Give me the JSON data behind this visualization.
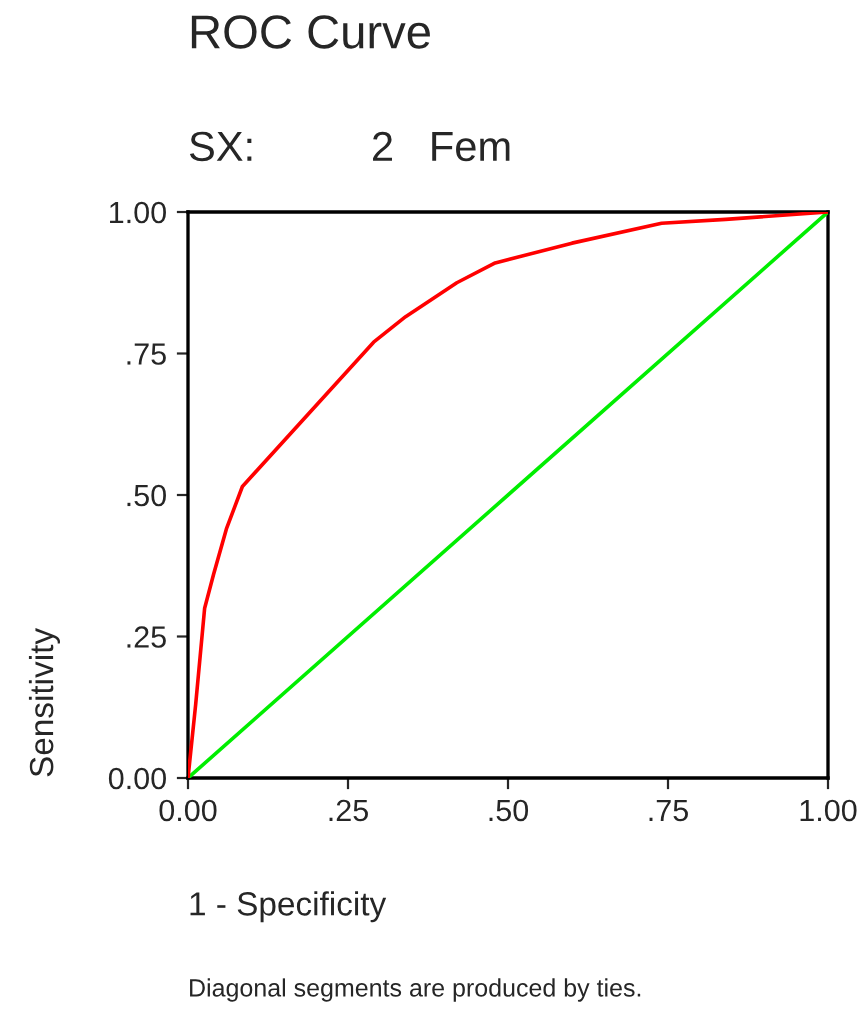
{
  "chart_data": {
    "type": "line",
    "title": "ROC Curve",
    "subtitle": "SX:          2   Fem",
    "xlabel": "1 - Specificity",
    "ylabel": "Sensitivity",
    "annotations": [
      "Diagonal segments are produced by ties."
    ],
    "series": [
      {
        "color": "#ff0000",
        "x": [
          0,
          0.012,
          0.026,
          0.04,
          0.06,
          0.085,
          0.29,
          0.34,
          0.42,
          0.48,
          0.6,
          0.74,
          0.84,
          1.0
        ],
        "values": [
          0,
          0.13,
          0.3,
          0.36,
          0.44,
          0.515,
          0.77,
          0.815,
          0.875,
          0.91,
          0.945,
          0.98,
          0.987,
          1.0
        ]
      },
      {
        "color": "#00ee00",
        "x": [
          0,
          1.0
        ],
        "values": [
          0,
          1.0
        ]
      }
    ],
    "xlim": [
      0,
      1
    ],
    "ylim": [
      0,
      1
    ],
    "xticks": [
      {
        "value": 0,
        "label": "0.00"
      },
      {
        "value": 0.25,
        "label": ".25"
      },
      {
        "value": 0.5,
        "label": ".50"
      },
      {
        "value": 0.75,
        "label": ".75"
      },
      {
        "value": 1,
        "label": "1.00"
      }
    ],
    "yticks": [
      {
        "value": 0,
        "label": "0.00"
      },
      {
        "value": 0.25,
        "label": ".25"
      },
      {
        "value": 0.5,
        "label": ".50"
      },
      {
        "value": 0.75,
        "label": ".75"
      },
      {
        "value": 1,
        "label": "1.00"
      }
    ],
    "grid": false,
    "legend": false
  }
}
